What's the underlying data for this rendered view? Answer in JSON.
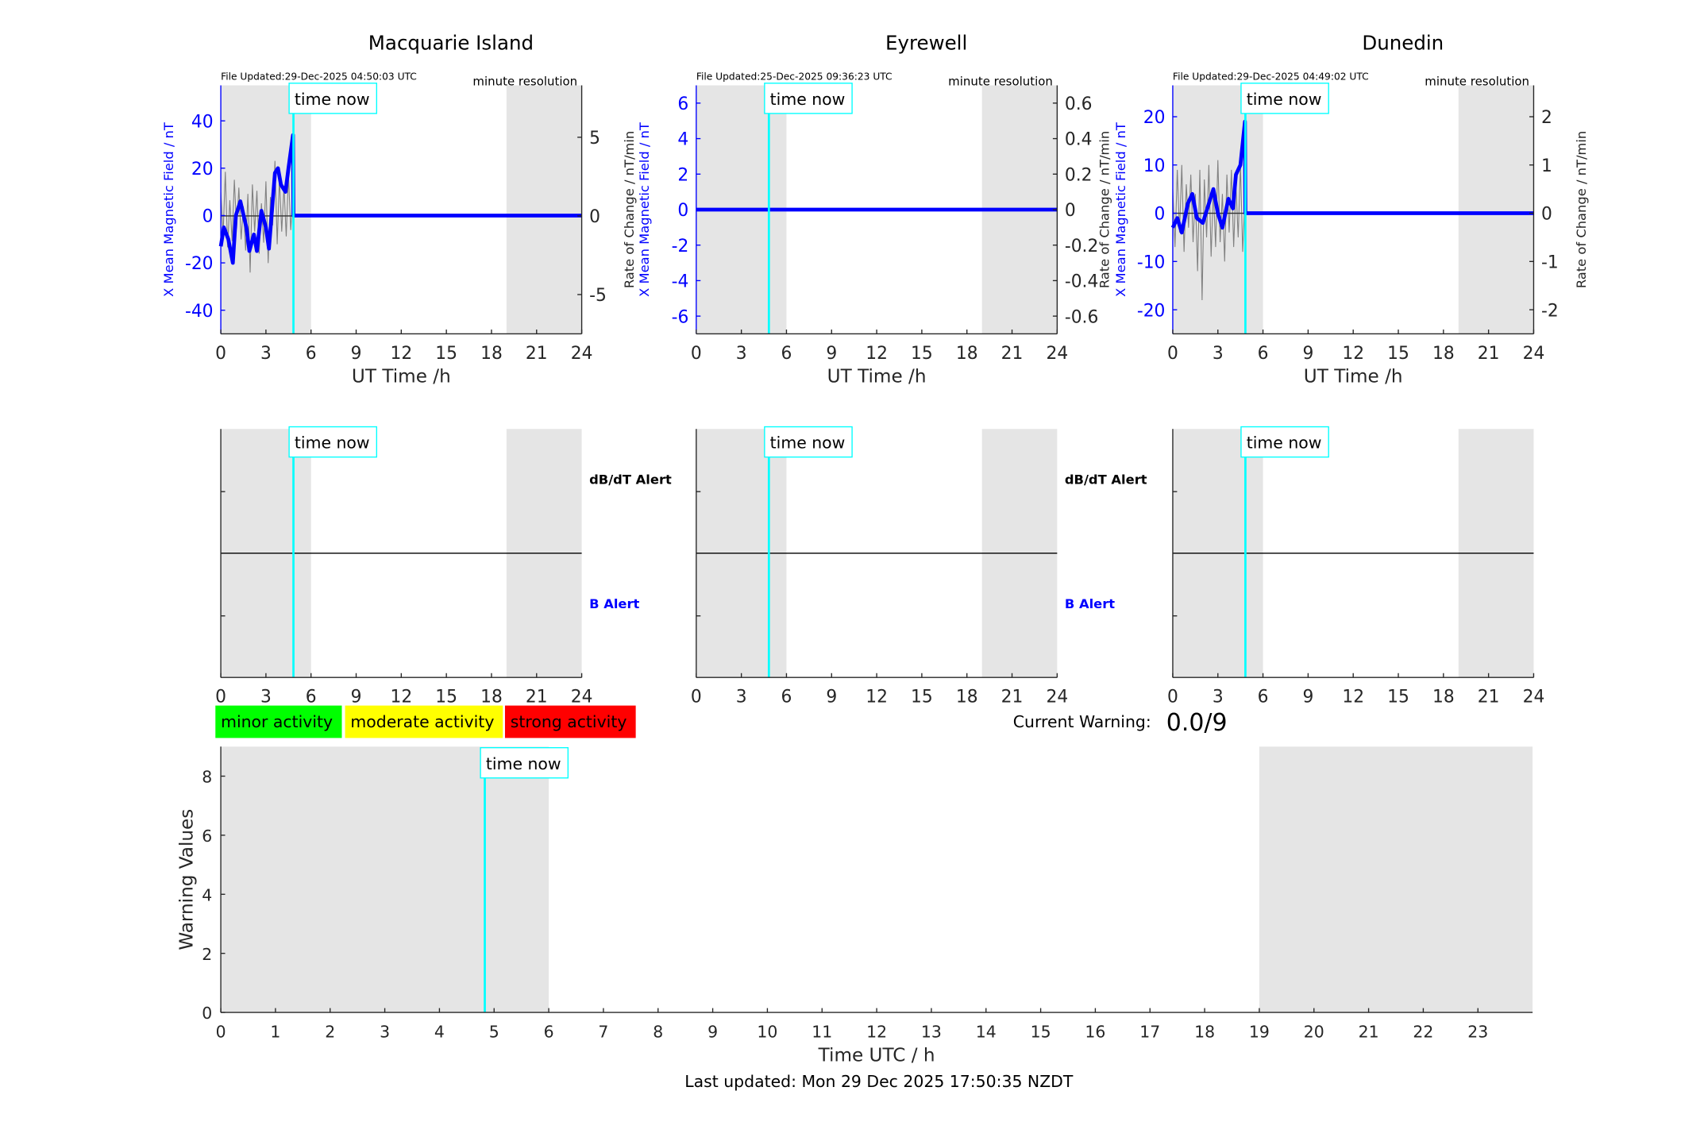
{
  "chart_data": [
    {
      "type": "line",
      "title": "Macquarie Island",
      "file_updated": "File Updated:29-Dec-2025 04:50:03 UTC",
      "resolution": "minute resolution",
      "xlabel": "UT Time /h",
      "ylabel_left": "X Mean Magnetic Field / nT",
      "ylabel_right": "Rate of Change / nT/min",
      "xlim": [
        0,
        24
      ],
      "xticks": [
        0,
        3,
        6,
        9,
        12,
        15,
        18,
        21,
        24
      ],
      "ylim_left": [
        -50,
        55
      ],
      "yticks_left": [
        -40,
        -20,
        0,
        20,
        40
      ],
      "ylim_right": [
        -7.5,
        8.3
      ],
      "yticks_right": [
        -5,
        0,
        5
      ],
      "shaded_hours": [
        [
          0,
          6
        ],
        [
          19,
          24
        ]
      ],
      "time_now": 4.83,
      "time_now_label": "time now",
      "x_mean_field": {
        "x": [
          0,
          0.2,
          0.5,
          0.8,
          1.0,
          1.3,
          1.7,
          1.9,
          2.2,
          2.4,
          2.7,
          3.0,
          3.2,
          3.6,
          3.8,
          4.0,
          4.3,
          4.5,
          4.8,
          4.83,
          24
        ],
        "y": [
          -13,
          -5,
          -10,
          -20,
          0,
          6,
          -5,
          -15,
          -8,
          -15,
          2,
          -5,
          -14,
          18,
          20,
          13,
          10,
          20,
          34,
          0,
          0
        ]
      },
      "rate_of_change": {
        "x": [
          0,
          0.15,
          0.3,
          0.45,
          0.6,
          0.75,
          0.9,
          1.05,
          1.2,
          1.35,
          1.5,
          1.65,
          1.8,
          1.95,
          2.1,
          2.25,
          2.4,
          2.55,
          2.7,
          2.85,
          3.0,
          3.15,
          3.3,
          3.45,
          3.6,
          3.75,
          3.9,
          4.05,
          4.2,
          4.35,
          4.5,
          4.65,
          4.8,
          4.83,
          24
        ],
        "y": [
          1.5,
          -1.2,
          2.8,
          -2.0,
          1.0,
          -1.6,
          2.3,
          -0.8,
          1.8,
          -1.5,
          0.6,
          -2.2,
          1.4,
          -3.6,
          2.0,
          -1.0,
          1.6,
          -2.4,
          0.8,
          -1.7,
          2.2,
          -3.0,
          1.2,
          -0.6,
          3.5,
          -1.8,
          2.4,
          -1.0,
          1.9,
          -1.3,
          2.6,
          -0.9,
          1.4,
          0,
          0
        ]
      }
    },
    {
      "type": "line",
      "title": "Eyrewell",
      "file_updated": "File Updated:25-Dec-2025 09:36:23 UTC",
      "resolution": "minute resolution",
      "xlabel": "UT Time /h",
      "ylabel_left": "X Mean Magnetic Field / nT",
      "ylabel_right": "Rate of Change / nT/min",
      "xlim": [
        0,
        24
      ],
      "xticks": [
        0,
        3,
        6,
        9,
        12,
        15,
        18,
        21,
        24
      ],
      "ylim_left": [
        -7,
        7
      ],
      "yticks_left": [
        -6,
        -4,
        -2,
        0,
        2,
        4,
        6
      ],
      "ylim_right": [
        -0.7,
        0.7
      ],
      "yticks_right": [
        -0.6,
        -0.4,
        -0.2,
        0,
        0.2,
        0.4,
        0.6
      ],
      "shaded_hours": [
        [
          0,
          6
        ],
        [
          19,
          24
        ]
      ],
      "time_now": 4.83,
      "time_now_label": "time now",
      "x_mean_field": {
        "x": [
          0,
          24
        ],
        "y": [
          0,
          0
        ]
      },
      "rate_of_change": {
        "x": [
          0,
          24
        ],
        "y": [
          0,
          0
        ]
      }
    },
    {
      "type": "line",
      "title": "Dunedin",
      "file_updated": "File Updated:29-Dec-2025 04:49:02 UTC",
      "resolution": "minute resolution",
      "xlabel": "UT Time /h",
      "ylabel_left": "X Mean Magnetic Field / nT",
      "ylabel_right": "Rate of Change / nT/min",
      "xlim": [
        0,
        24
      ],
      "xticks": [
        0,
        3,
        6,
        9,
        12,
        15,
        18,
        21,
        24
      ],
      "ylim_left": [
        -25,
        26.5
      ],
      "yticks_left": [
        -20,
        -10,
        0,
        10,
        20
      ],
      "ylim_right": [
        -2.5,
        2.65
      ],
      "yticks_right": [
        -2,
        -1,
        0,
        1,
        2
      ],
      "shaded_hours": [
        [
          0,
          6
        ],
        [
          19,
          24
        ]
      ],
      "time_now": 4.83,
      "time_now_label": "time now",
      "x_mean_field": {
        "x": [
          0,
          0.3,
          0.6,
          1.0,
          1.3,
          1.6,
          2.0,
          2.3,
          2.7,
          3.0,
          3.3,
          3.7,
          4.0,
          4.2,
          4.5,
          4.8,
          4.83,
          24
        ],
        "y": [
          -3,
          -1,
          -4,
          2,
          4,
          -1,
          -2,
          1,
          5,
          0,
          -3,
          3,
          1,
          8,
          10,
          19,
          0,
          0
        ]
      },
      "rate_of_change": {
        "x": [
          0,
          0.15,
          0.3,
          0.45,
          0.6,
          0.75,
          0.9,
          1.05,
          1.2,
          1.35,
          1.5,
          1.65,
          1.8,
          1.95,
          2.1,
          2.25,
          2.4,
          2.55,
          2.7,
          2.85,
          3.0,
          3.15,
          3.3,
          3.45,
          3.6,
          3.75,
          3.9,
          4.05,
          4.2,
          4.35,
          4.5,
          4.65,
          4.8,
          4.83,
          24
        ],
        "y": [
          0.5,
          -0.7,
          0.9,
          -0.4,
          1.0,
          -0.8,
          0.6,
          -0.3,
          0.8,
          -0.6,
          0.4,
          -1.2,
          0.9,
          -1.8,
          0.7,
          -0.5,
          1.0,
          -0.9,
          0.5,
          -0.7,
          1.1,
          -0.6,
          0.4,
          -1.0,
          0.8,
          -0.4,
          0.9,
          -0.7,
          0.6,
          -0.5,
          1.0,
          -0.8,
          0.3,
          0,
          0
        ]
      }
    },
    {
      "type": "line",
      "alerts": [
        "dB/dT Alert",
        "B Alert"
      ],
      "stations": [
        "Macquarie Island",
        "Eyrewell",
        "Dunedin"
      ],
      "xticks": [
        0,
        3,
        6,
        9,
        12,
        15,
        18,
        21,
        24
      ],
      "shaded_hours": [
        [
          0,
          6
        ],
        [
          19,
          24
        ]
      ],
      "time_now": 4.83,
      "time_now_label": "time now"
    },
    {
      "type": "line",
      "xlabel": "Time UTC / h",
      "ylabel": "Warning Values",
      "xlim": [
        0,
        24
      ],
      "xticks": [
        0,
        1,
        2,
        3,
        4,
        5,
        6,
        7,
        8,
        9,
        10,
        11,
        12,
        13,
        14,
        15,
        16,
        17,
        18,
        19,
        20,
        21,
        22,
        23
      ],
      "ylim": [
        0,
        9
      ],
      "yticks": [
        0,
        2,
        4,
        6,
        8
      ],
      "shaded_hours": [
        [
          0,
          6
        ],
        [
          19,
          24
        ]
      ],
      "time_now": 4.83,
      "time_now_label": "time now",
      "legend": [
        {
          "label": "minor activity",
          "color": "#00ff00"
        },
        {
          "label": "moderate activity",
          "color": "#ffff00"
        },
        {
          "label": "strong activity",
          "color": "#ff0000"
        }
      ],
      "current_warning_label": "Current Warning:",
      "current_warning_value": "0.0/9"
    }
  ],
  "footer": {
    "last_updated": "Last updated: Mon 29 Dec 2025 17:50:35 NZDT"
  },
  "colors": {
    "field": "#0000ff",
    "rate": "#808080",
    "time_now": "#00ffff",
    "shade": "#e5e5e5"
  }
}
